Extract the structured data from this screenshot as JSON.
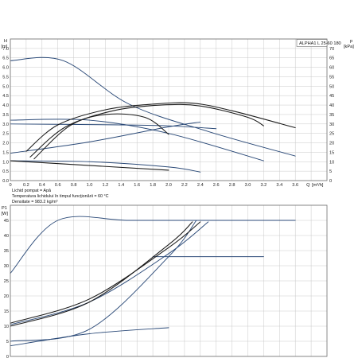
{
  "colors": {
    "grid": "#c9c9c9",
    "frame": "#6f6f6f",
    "black": "#1b1b1b",
    "blue": "#2b4a78"
  },
  "chart_data": [
    {
      "type": "line",
      "title": "ALPHA1 L 25-60  180",
      "ylabel_left": "H [m]",
      "ylabel_right": "p [kPa]",
      "xlabel": "Q [m³/h]",
      "xlim": [
        0,
        4.0
      ],
      "ylim": [
        0,
        7.5
      ],
      "y2lim": [
        0,
        75
      ],
      "grid": true,
      "x_ticks": [
        "0",
        "0.2",
        "0.4",
        "0.6",
        "0.8",
        "1.0",
        "1.2",
        "1.4",
        "1.6",
        "1.8",
        "2.0",
        "2.2",
        "2.4",
        "2.6",
        "2.8",
        "3.0",
        "3.2",
        "3.4",
        "3.6"
      ],
      "y_ticks": [
        "0.0",
        "0.5",
        "1.0",
        "1.5",
        "2.0",
        "2.5",
        "3.0",
        "3.5",
        "4.0",
        "4.5",
        "5.0",
        "5.5",
        "6.0",
        "6.5",
        "7.0"
      ],
      "y2_ticks": [
        "0",
        "5",
        "10",
        "15",
        "20",
        "25",
        "30",
        "35",
        "40",
        "45",
        "50",
        "55",
        "60",
        "65",
        "70"
      ],
      "y_unit_left": "[m]",
      "y_unit_right": "[kPa]",
      "x_unit": "[m³/h]",
      "axis_letter_left": "H",
      "axis_letter_right": "p",
      "axis_letter_x": "Q",
      "info_lines": [
        "Lichid pompat = Apă",
        "Temperatura lichidului în timpul funcţionării = 60 °C",
        "Densitate = 983.2 kg/m³"
      ],
      "series": [
        {
          "color": "blue",
          "x": [
            0,
            0.67,
            1.5,
            2.5,
            3.6
          ],
          "y": [
            6.35,
            6.35,
            4.05,
            2.6,
            1.3
          ]
        },
        {
          "color": "blue",
          "x": [
            0,
            1.0,
            2.0,
            3.2
          ],
          "y": [
            3.2,
            3.2,
            2.5,
            1.05
          ]
        },
        {
          "color": "blue",
          "x": [
            0,
            1.4,
            2.0,
            2.6
          ],
          "y": [
            3.0,
            2.95,
            2.9,
            2.75
          ]
        },
        {
          "color": "blue",
          "x": [
            0,
            1.0,
            2.0,
            2.4
          ],
          "y": [
            1.05,
            1.0,
            0.72,
            0.45
          ]
        },
        {
          "color": "black",
          "x": [
            0,
            2.0
          ],
          "y": [
            1.05,
            0.55
          ]
        },
        {
          "color": "blue",
          "x": [
            0,
            1.0,
            2.0,
            2.4
          ],
          "y": [
            1.45,
            2.05,
            2.85,
            3.1
          ]
        },
        {
          "color": "black",
          "x": [
            0.2,
            0.6,
            1.2,
            1.8,
            2.3,
            2.8,
            3.6
          ],
          "y": [
            1.55,
            2.95,
            3.75,
            4.05,
            4.1,
            3.7,
            2.8
          ]
        },
        {
          "color": "black",
          "x": [
            0.25,
            0.7,
            1.3,
            1.9,
            2.4,
            3.0,
            3.2
          ],
          "y": [
            1.25,
            2.85,
            3.7,
            4.0,
            3.95,
            3.35,
            2.9
          ]
        },
        {
          "color": "black",
          "x": [
            0.3,
            0.75,
            1.2,
            1.7,
            2.0
          ],
          "y": [
            1.15,
            2.9,
            3.5,
            3.35,
            2.45
          ]
        }
      ]
    },
    {
      "type": "line",
      "ylabel": "P1 [W]",
      "xlim": [
        0,
        4.0
      ],
      "ylim": [
        0,
        50
      ],
      "grid": true,
      "y_ticks": [
        "0",
        "5",
        "10",
        "15",
        "20",
        "25",
        "30",
        "35",
        "40",
        "45"
      ],
      "y_unit": "[W]",
      "axis_letter": "P1",
      "series": [
        {
          "color": "blue",
          "x": [
            0,
            0.6,
            1.5,
            2.5,
            3.6
          ],
          "y": [
            27.5,
            45,
            45,
            45,
            45
          ]
        },
        {
          "color": "blue",
          "x": [
            1.8,
            2.5,
            3.2
          ],
          "y": [
            33,
            33,
            33
          ]
        },
        {
          "color": "blue",
          "x": [
            0,
            1.0,
            2.0,
            2.5
          ],
          "y": [
            10.5,
            18,
            34,
            44.5
          ]
        },
        {
          "color": "blue",
          "x": [
            0,
            1.0,
            2.0,
            2.35
          ],
          "y": [
            5,
            9,
            33,
            45
          ]
        },
        {
          "color": "blue",
          "x": [
            0,
            1.0,
            2.0
          ],
          "y": [
            3.5,
            7.5,
            9.5
          ]
        },
        {
          "color": "black",
          "x": [
            0,
            1.0,
            2.0,
            2.4
          ],
          "y": [
            11,
            19,
            36,
            44.5
          ]
        },
        {
          "color": "black",
          "x": [
            0,
            1.0,
            2.0,
            2.3
          ],
          "y": [
            10,
            18,
            37,
            44.5
          ]
        }
      ]
    }
  ]
}
